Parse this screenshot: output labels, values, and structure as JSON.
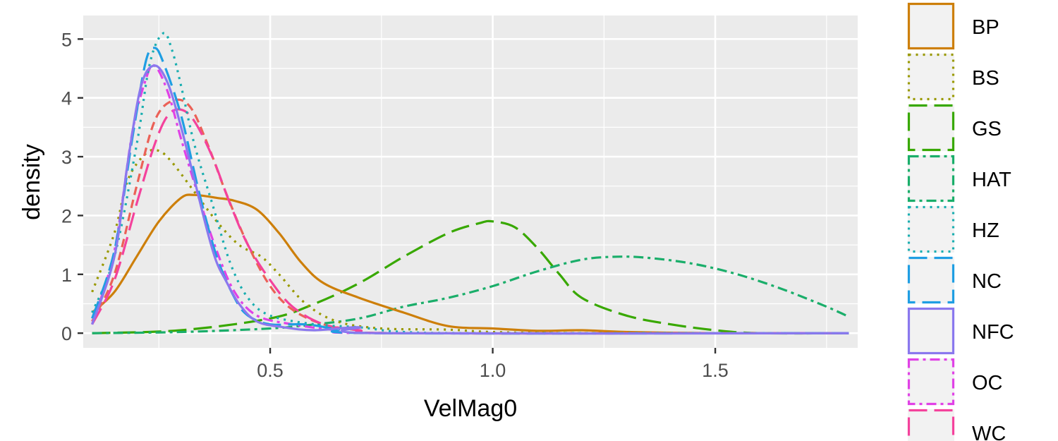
{
  "chart_data": {
    "type": "line",
    "subtype": "density",
    "title": "",
    "xlabel": "VelMag0",
    "ylabel": "density",
    "xlim": [
      0.08,
      1.82
    ],
    "ylim": [
      -0.25,
      5.4
    ],
    "x_ticks": [
      {
        "value": 0.5,
        "label": "0.5"
      },
      {
        "value": 1.0,
        "label": "1.0"
      },
      {
        "value": 1.5,
        "label": "1.5"
      }
    ],
    "y_ticks": [
      {
        "value": 0,
        "label": "0"
      },
      {
        "value": 1,
        "label": "1"
      },
      {
        "value": 2,
        "label": "2"
      },
      {
        "value": 3,
        "label": "3"
      },
      {
        "value": 4,
        "label": "4"
      },
      {
        "value": 5,
        "label": "5"
      }
    ],
    "grid": true,
    "legend_position": "right",
    "series": [
      {
        "name": "BP",
        "color": "#CD7F0A",
        "dash": "",
        "points": [
          [
            0.1,
            0.35
          ],
          [
            0.15,
            0.7
          ],
          [
            0.2,
            1.3
          ],
          [
            0.25,
            1.9
          ],
          [
            0.3,
            2.3
          ],
          [
            0.33,
            2.35
          ],
          [
            0.38,
            2.3
          ],
          [
            0.42,
            2.25
          ],
          [
            0.47,
            2.1
          ],
          [
            0.52,
            1.7
          ],
          [
            0.57,
            1.2
          ],
          [
            0.62,
            0.85
          ],
          [
            0.7,
            0.6
          ],
          [
            0.8,
            0.35
          ],
          [
            0.9,
            0.12
          ],
          [
            1.0,
            0.08
          ],
          [
            1.1,
            0.04
          ],
          [
            1.2,
            0.05
          ],
          [
            1.3,
            0.02
          ],
          [
            1.5,
            0.0
          ],
          [
            1.8,
            0.0
          ]
        ]
      },
      {
        "name": "BS",
        "color": "#999900",
        "dash": "3,7",
        "points": [
          [
            0.1,
            0.7
          ],
          [
            0.15,
            1.7
          ],
          [
            0.18,
            2.6
          ],
          [
            0.22,
            3.05
          ],
          [
            0.25,
            3.1
          ],
          [
            0.28,
            2.9
          ],
          [
            0.33,
            2.4
          ],
          [
            0.38,
            1.9
          ],
          [
            0.43,
            1.5
          ],
          [
            0.48,
            1.3
          ],
          [
            0.52,
            1.0
          ],
          [
            0.58,
            0.5
          ],
          [
            0.65,
            0.2
          ],
          [
            0.75,
            0.08
          ],
          [
            0.9,
            0.06
          ],
          [
            1.0,
            0.02
          ],
          [
            1.2,
            0.0
          ],
          [
            1.8,
            0.0
          ]
        ]
      },
      {
        "name": "GS",
        "color": "#38A800",
        "dash": "26,10",
        "points": [
          [
            0.1,
            0.0
          ],
          [
            0.3,
            0.05
          ],
          [
            0.5,
            0.25
          ],
          [
            0.6,
            0.5
          ],
          [
            0.7,
            0.85
          ],
          [
            0.8,
            1.3
          ],
          [
            0.9,
            1.7
          ],
          [
            0.97,
            1.87
          ],
          [
            1.0,
            1.9
          ],
          [
            1.05,
            1.8
          ],
          [
            1.1,
            1.45
          ],
          [
            1.15,
            1.0
          ],
          [
            1.2,
            0.6
          ],
          [
            1.3,
            0.3
          ],
          [
            1.4,
            0.15
          ],
          [
            1.5,
            0.05
          ],
          [
            1.6,
            0.0
          ],
          [
            1.8,
            0.0
          ]
        ]
      },
      {
        "name": "HAT",
        "color": "#1AAE6A",
        "dash": "14,6,4,6",
        "points": [
          [
            0.1,
            0.0
          ],
          [
            0.3,
            0.02
          ],
          [
            0.5,
            0.08
          ],
          [
            0.6,
            0.15
          ],
          [
            0.7,
            0.25
          ],
          [
            0.8,
            0.45
          ],
          [
            0.9,
            0.6
          ],
          [
            1.0,
            0.8
          ],
          [
            1.1,
            1.05
          ],
          [
            1.2,
            1.25
          ],
          [
            1.28,
            1.3
          ],
          [
            1.35,
            1.28
          ],
          [
            1.45,
            1.18
          ],
          [
            1.55,
            1.0
          ],
          [
            1.65,
            0.75
          ],
          [
            1.75,
            0.45
          ],
          [
            1.8,
            0.28
          ]
        ]
      },
      {
        "name": "HZ",
        "color": "#19AEB0",
        "dash": "3,7",
        "points": [
          [
            0.1,
            0.35
          ],
          [
            0.15,
            1.3
          ],
          [
            0.2,
            3.2
          ],
          [
            0.23,
            4.6
          ],
          [
            0.26,
            5.1
          ],
          [
            0.28,
            4.8
          ],
          [
            0.3,
            4.2
          ],
          [
            0.33,
            3.2
          ],
          [
            0.37,
            2.2
          ],
          [
            0.41,
            1.2
          ],
          [
            0.45,
            0.6
          ],
          [
            0.5,
            0.3
          ],
          [
            0.6,
            0.15
          ],
          [
            0.7,
            0.1
          ],
          [
            0.8,
            0.02
          ],
          [
            1.0,
            0.0
          ],
          [
            1.8,
            0.0
          ]
        ]
      },
      {
        "name": "NC",
        "color": "#1F9EE3",
        "dash": "26,10",
        "points": [
          [
            0.1,
            0.25
          ],
          [
            0.15,
            1.4
          ],
          [
            0.19,
            3.3
          ],
          [
            0.22,
            4.6
          ],
          [
            0.24,
            4.85
          ],
          [
            0.26,
            4.6
          ],
          [
            0.3,
            3.7
          ],
          [
            0.34,
            2.4
          ],
          [
            0.38,
            1.3
          ],
          [
            0.42,
            0.6
          ],
          [
            0.45,
            0.3
          ],
          [
            0.5,
            0.15
          ],
          [
            0.58,
            0.15
          ],
          [
            0.65,
            0.07
          ],
          [
            0.75,
            0.0
          ],
          [
            1.8,
            0.0
          ]
        ]
      },
      {
        "name": "NFC",
        "color": "#8A78EE",
        "dash": "",
        "points": [
          [
            0.1,
            0.15
          ],
          [
            0.15,
            1.3
          ],
          [
            0.18,
            2.9
          ],
          [
            0.21,
            4.2
          ],
          [
            0.24,
            4.55
          ],
          [
            0.27,
            4.25
          ],
          [
            0.3,
            3.5
          ],
          [
            0.33,
            2.6
          ],
          [
            0.36,
            1.7
          ],
          [
            0.38,
            1.2
          ],
          [
            0.4,
            0.9
          ],
          [
            0.43,
            0.5
          ],
          [
            0.47,
            0.2
          ],
          [
            0.53,
            0.1
          ],
          [
            0.6,
            0.05
          ],
          [
            0.7,
            0.1
          ],
          [
            0.75,
            0.0
          ],
          [
            1.8,
            0.0
          ]
        ]
      },
      {
        "name": "OC",
        "color": "#E042E6",
        "dash": "14,6,4,6",
        "points": [
          [
            0.1,
            0.15
          ],
          [
            0.15,
            1.4
          ],
          [
            0.19,
            3.4
          ],
          [
            0.22,
            4.3
          ],
          [
            0.24,
            4.55
          ],
          [
            0.27,
            4.1
          ],
          [
            0.3,
            3.3
          ],
          [
            0.34,
            2.3
          ],
          [
            0.38,
            1.4
          ],
          [
            0.42,
            0.7
          ],
          [
            0.47,
            0.3
          ],
          [
            0.55,
            0.15
          ],
          [
            0.65,
            0.05
          ],
          [
            0.75,
            0.0
          ],
          [
            1.8,
            0.0
          ]
        ]
      },
      {
        "name": "WC",
        "color": "#F4429C",
        "dash": "26,10",
        "points": [
          [
            0.1,
            0.15
          ],
          [
            0.15,
            0.9
          ],
          [
            0.2,
            2.2
          ],
          [
            0.24,
            3.2
          ],
          [
            0.27,
            3.7
          ],
          [
            0.3,
            3.8
          ],
          [
            0.33,
            3.6
          ],
          [
            0.37,
            3.0
          ],
          [
            0.41,
            2.2
          ],
          [
            0.45,
            1.5
          ],
          [
            0.5,
            0.9
          ],
          [
            0.55,
            0.45
          ],
          [
            0.62,
            0.15
          ],
          [
            0.7,
            0.05
          ],
          [
            0.8,
            0.0
          ],
          [
            1.8,
            0.0
          ]
        ]
      },
      {
        "name": "",
        "color": "#EB6157",
        "dash": "12,7",
        "points": [
          [
            0.1,
            0.2
          ],
          [
            0.15,
            1.0
          ],
          [
            0.2,
            2.5
          ],
          [
            0.24,
            3.6
          ],
          [
            0.28,
            3.95
          ],
          [
            0.32,
            3.85
          ],
          [
            0.36,
            3.2
          ],
          [
            0.4,
            2.4
          ],
          [
            0.45,
            1.5
          ],
          [
            0.5,
            0.8
          ],
          [
            0.55,
            0.4
          ],
          [
            0.62,
            0.15
          ],
          [
            0.7,
            0.05
          ],
          [
            0.8,
            0.0
          ],
          [
            1.8,
            0.0
          ]
        ]
      }
    ]
  }
}
